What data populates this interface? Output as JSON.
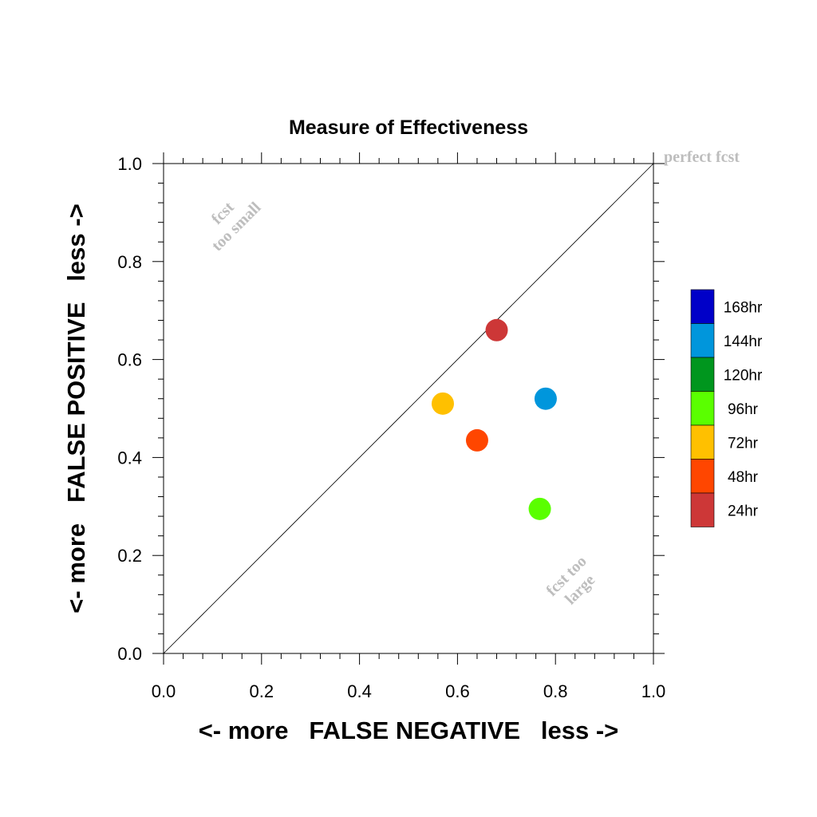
{
  "chart_data": {
    "type": "scatter",
    "title": "Measure of Effectiveness",
    "xlabel": "<- more   FALSE NEGATIVE   less ->",
    "ylabel": "<- more   FALSE POSITIVE   less ->",
    "xlim": [
      0,
      1
    ],
    "ylim": [
      0,
      1
    ],
    "xticks": [
      "0.0",
      "0.2",
      "0.4",
      "0.6",
      "0.8",
      "1.0"
    ],
    "yticks": [
      "0.0",
      "0.2",
      "0.4",
      "0.6",
      "0.8",
      "1.0"
    ],
    "grid": false,
    "diagonal": [
      [
        0,
        0
      ],
      [
        1,
        1
      ]
    ],
    "annotations": {
      "perfect": "perfect fcst",
      "small_1": "fcst",
      "small_2": "too small",
      "large_1": "fcst too",
      "large_2": "large"
    },
    "legend": {
      "placement": "right",
      "entries": [
        {
          "label": "168hr",
          "color": "#0000c8"
        },
        {
          "label": "144hr",
          "color": "#0096dc"
        },
        {
          "label": "120hr",
          "color": "#00961e"
        },
        {
          "label": "96hr",
          "color": "#5aff00"
        },
        {
          "label": "72hr",
          "color": "#ffc000"
        },
        {
          "label": "48hr",
          "color": "#ff4600"
        },
        {
          "label": "24hr",
          "color": "#cd3737"
        }
      ]
    },
    "points": [
      {
        "label": "24hr",
        "x": 0.68,
        "y": 0.66,
        "color": "#cd3737"
      },
      {
        "label": "48hr",
        "x": 0.64,
        "y": 0.435,
        "color": "#ff4600"
      },
      {
        "label": "72hr",
        "x": 0.57,
        "y": 0.51,
        "color": "#ffc000"
      },
      {
        "label": "96hr",
        "x": 0.768,
        "y": 0.295,
        "color": "#5aff00"
      },
      {
        "label": "144hr",
        "x": 0.78,
        "y": 0.52,
        "color": "#0096dc"
      }
    ]
  }
}
